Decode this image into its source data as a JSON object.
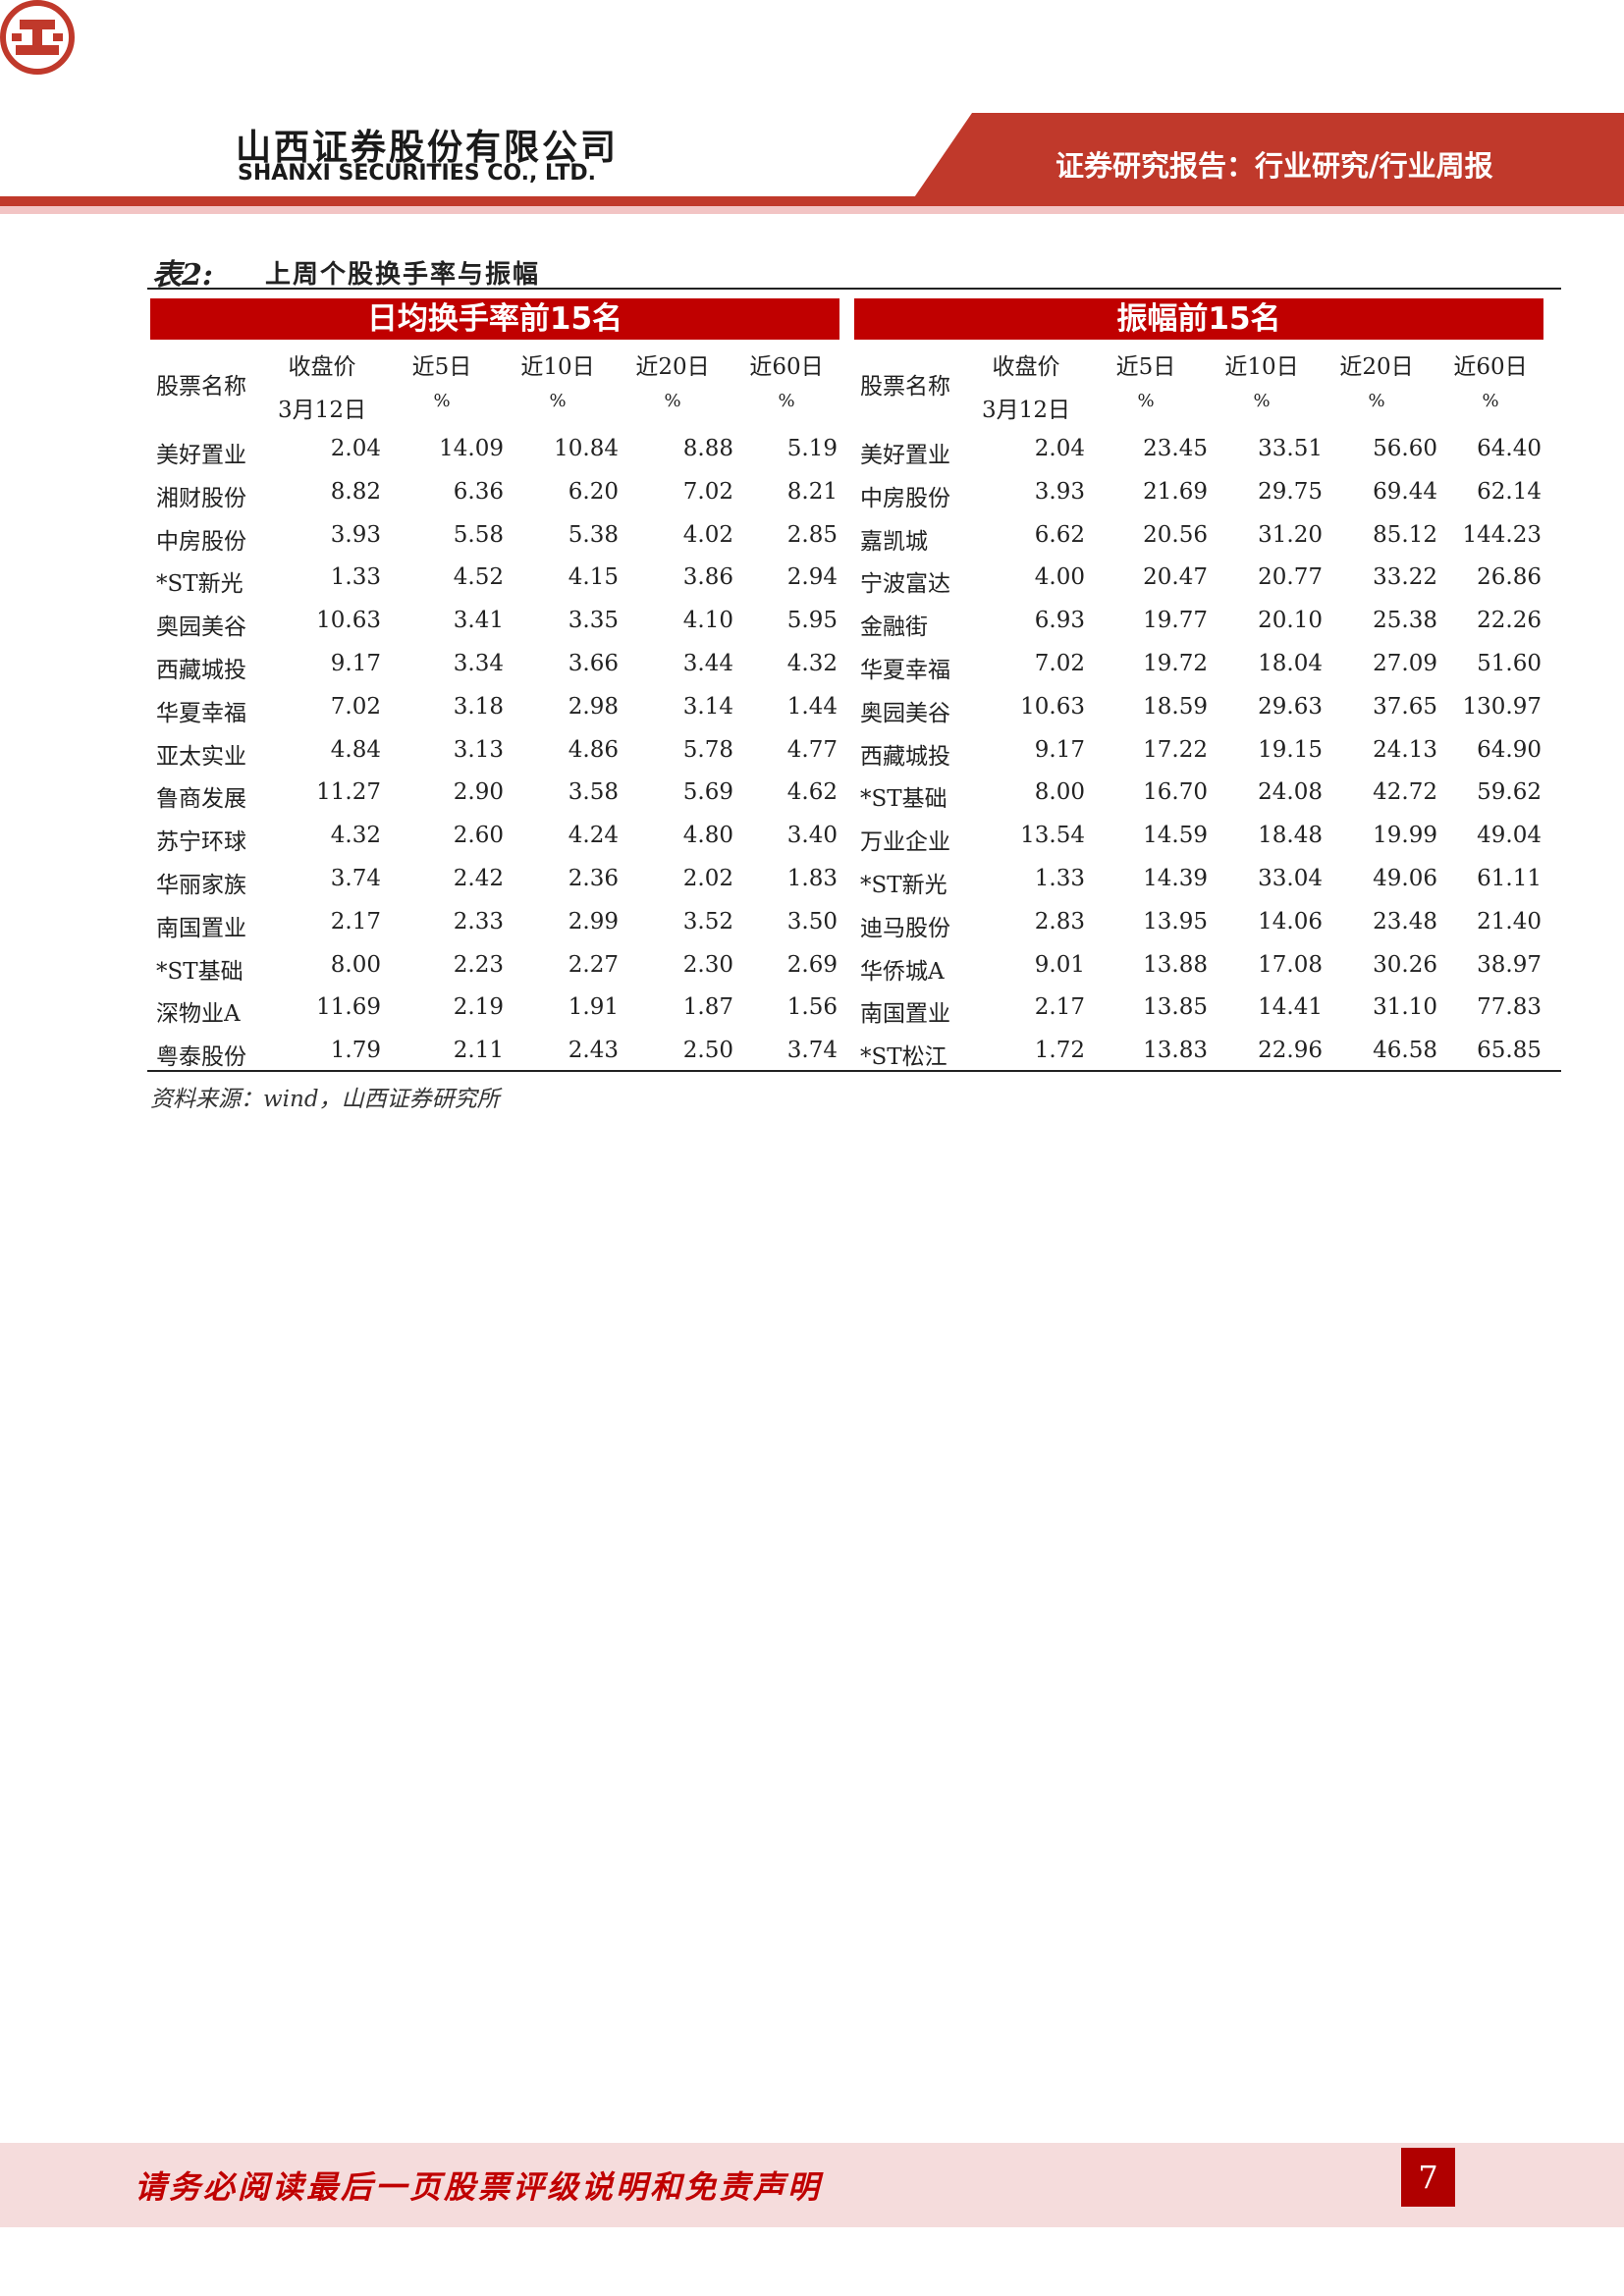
{
  "header": {
    "company_cn": "山西证券股份有限公司",
    "company_en": "SHANXI SECURITIES CO., LTD.",
    "report_type": "证券研究报告：行业研究/行业周报",
    "colors": {
      "brand_red": "#c0392b",
      "accent_pink": "#f2c4c4"
    }
  },
  "caption": {
    "label": "表2:",
    "title": "上周个股换手率与振幅"
  },
  "tables": [
    {
      "banner": "日均换手率前15名",
      "headers": {
        "name": "股票名称",
        "price": "收盘价",
        "price_sub": "3月12日",
        "d5": "近5日",
        "d10": "近10日",
        "d20": "近20日",
        "d60": "近60日",
        "unit": "%"
      },
      "rows": [
        [
          "美好置业",
          "2.04",
          "14.09",
          "10.84",
          "8.88",
          "5.19"
        ],
        [
          "湘财股份",
          "8.82",
          "6.36",
          "6.20",
          "7.02",
          "8.21"
        ],
        [
          "中房股份",
          "3.93",
          "5.58",
          "5.38",
          "4.02",
          "2.85"
        ],
        [
          "*ST新光",
          "1.33",
          "4.52",
          "4.15",
          "3.86",
          "2.94"
        ],
        [
          "奥园美谷",
          "10.63",
          "3.41",
          "3.35",
          "4.10",
          "5.95"
        ],
        [
          "西藏城投",
          "9.17",
          "3.34",
          "3.66",
          "3.44",
          "4.32"
        ],
        [
          "华夏幸福",
          "7.02",
          "3.18",
          "2.98",
          "3.14",
          "1.44"
        ],
        [
          "亚太实业",
          "4.84",
          "3.13",
          "4.86",
          "5.78",
          "4.77"
        ],
        [
          "鲁商发展",
          "11.27",
          "2.90",
          "3.58",
          "5.69",
          "4.62"
        ],
        [
          "苏宁环球",
          "4.32",
          "2.60",
          "4.24",
          "4.80",
          "3.40"
        ],
        [
          "华丽家族",
          "3.74",
          "2.42",
          "2.36",
          "2.02",
          "1.83"
        ],
        [
          "南国置业",
          "2.17",
          "2.33",
          "2.99",
          "3.52",
          "3.50"
        ],
        [
          "*ST基础",
          "8.00",
          "2.23",
          "2.27",
          "2.30",
          "2.69"
        ],
        [
          "深物业A",
          "11.69",
          "2.19",
          "1.91",
          "1.87",
          "1.56"
        ],
        [
          "粤泰股份",
          "1.79",
          "2.11",
          "2.43",
          "2.50",
          "3.74"
        ]
      ]
    },
    {
      "banner": "振幅前15名",
      "headers": {
        "name": "股票名称",
        "price": "收盘价",
        "price_sub": "3月12日",
        "d5": "近5日",
        "d10": "近10日",
        "d20": "近20日",
        "d60": "近60日",
        "unit": "%"
      },
      "rows": [
        [
          "美好置业",
          "2.04",
          "23.45",
          "33.51",
          "56.60",
          "64.40"
        ],
        [
          "中房股份",
          "3.93",
          "21.69",
          "29.75",
          "69.44",
          "62.14"
        ],
        [
          "嘉凯城",
          "6.62",
          "20.56",
          "31.20",
          "85.12",
          "144.23"
        ],
        [
          "宁波富达",
          "4.00",
          "20.47",
          "20.77",
          "33.22",
          "26.86"
        ],
        [
          "金融街",
          "6.93",
          "19.77",
          "20.10",
          "25.38",
          "22.26"
        ],
        [
          "华夏幸福",
          "7.02",
          "19.72",
          "18.04",
          "27.09",
          "51.60"
        ],
        [
          "奥园美谷",
          "10.63",
          "18.59",
          "29.63",
          "37.65",
          "130.97"
        ],
        [
          "西藏城投",
          "9.17",
          "17.22",
          "19.15",
          "24.13",
          "64.90"
        ],
        [
          "*ST基础",
          "8.00",
          "16.70",
          "24.08",
          "42.72",
          "59.62"
        ],
        [
          "万业企业",
          "13.54",
          "14.59",
          "18.48",
          "19.99",
          "49.04"
        ],
        [
          "*ST新光",
          "1.33",
          "14.39",
          "33.04",
          "49.06",
          "61.11"
        ],
        [
          "迪马股份",
          "2.83",
          "13.95",
          "14.06",
          "23.48",
          "21.40"
        ],
        [
          "华侨城A",
          "9.01",
          "13.88",
          "17.08",
          "30.26",
          "38.97"
        ],
        [
          "南国置业",
          "2.17",
          "13.85",
          "14.41",
          "31.10",
          "77.83"
        ],
        [
          "*ST松江",
          "1.72",
          "13.83",
          "22.96",
          "46.58",
          "65.85"
        ]
      ]
    }
  ],
  "source": "资料来源：wind，山西证券研究所",
  "footer": {
    "disclaimer": "请务必阅读最后一页股票评级说明和免责声明",
    "page_number": "7"
  }
}
